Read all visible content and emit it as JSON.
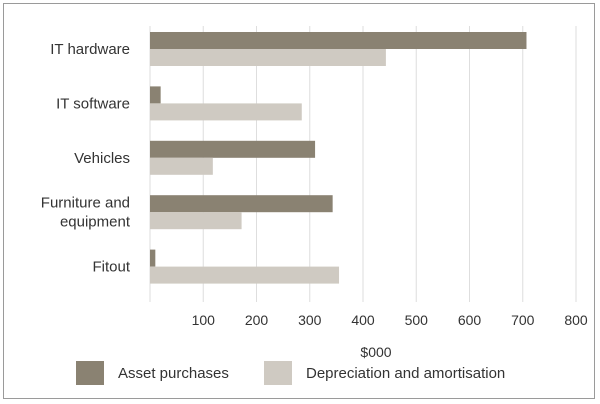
{
  "chart_data": {
    "type": "bar",
    "orientation": "horizontal",
    "categories": [
      [
        "IT hardware"
      ],
      [
        "IT software"
      ],
      [
        "Vehicles"
      ],
      [
        "Furniture and",
        "equipment"
      ],
      [
        "Fitout"
      ]
    ],
    "series": [
      {
        "name": "Asset purchases",
        "color": "#8a8272",
        "values": [
          707,
          20,
          310,
          343,
          10
        ]
      },
      {
        "name": "Depreciation and amortisation",
        "color": "#cfcac2",
        "values": [
          443,
          285,
          118,
          172,
          355
        ]
      }
    ],
    "xlabel": "$000",
    "ylabel": "",
    "xlim": [
      0,
      800
    ],
    "xticks": [
      100,
      200,
      300,
      400,
      500,
      600,
      700,
      800
    ],
    "grid": "vertical",
    "grid_color": "#dedede",
    "legend_position": "bottom"
  }
}
